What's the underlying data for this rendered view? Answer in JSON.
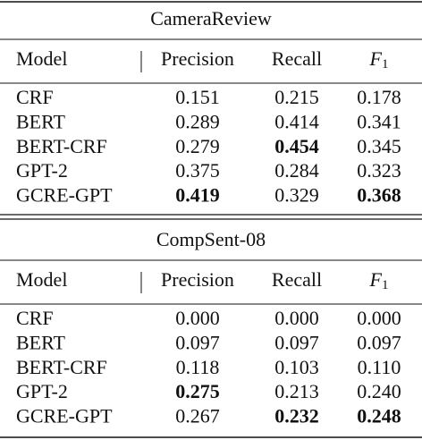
{
  "sections": [
    {
      "title": "CameraReview",
      "columns": [
        "Model",
        "Precision",
        "Recall",
        {
          "base": "F",
          "sub": "1"
        }
      ],
      "rows": [
        [
          "CRF",
          "0.151",
          "0.215",
          "0.178"
        ],
        [
          "BERT",
          "0.289",
          "0.414",
          "0.341"
        ],
        [
          "BERT-CRF",
          "0.279",
          "0.454",
          "0.345"
        ],
        [
          "GPT-2",
          "0.375",
          "0.284",
          "0.323"
        ],
        [
          "GCRE-GPT",
          "0.419",
          "0.329",
          "0.368"
        ]
      ],
      "bold": [
        [
          2,
          2
        ],
        [
          4,
          1
        ],
        [
          4,
          3
        ]
      ]
    },
    {
      "title": "CompSent-08",
      "columns": [
        "Model",
        "Precision",
        "Recall",
        {
          "base": "F",
          "sub": "1"
        }
      ],
      "rows": [
        [
          "CRF",
          "0.000",
          "0.000",
          "0.000"
        ],
        [
          "BERT",
          "0.097",
          "0.097",
          "0.097"
        ],
        [
          "BERT-CRF",
          "0.118",
          "0.103",
          "0.110"
        ],
        [
          "GPT-2",
          "0.275",
          "0.213",
          "0.240"
        ],
        [
          "GCRE-GPT",
          "0.267",
          "0.232",
          "0.248"
        ]
      ],
      "bold": [
        [
          3,
          1
        ],
        [
          4,
          2
        ],
        [
          4,
          3
        ]
      ]
    }
  ]
}
